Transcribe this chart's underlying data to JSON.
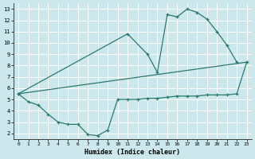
{
  "xlabel": "Humidex (Indice chaleur)",
  "bg_color": "#cce8ec",
  "grid_color": "#ffffff",
  "line_color": "#2a7a6a",
  "xlim": [
    -0.5,
    23.5
  ],
  "ylim": [
    1.5,
    13.5
  ],
  "xticks": [
    0,
    1,
    2,
    3,
    4,
    5,
    6,
    7,
    8,
    9,
    10,
    11,
    12,
    13,
    14,
    15,
    16,
    17,
    18,
    19,
    20,
    21,
    22,
    23
  ],
  "yticks": [
    2,
    3,
    4,
    5,
    6,
    7,
    8,
    9,
    10,
    11,
    12,
    13
  ],
  "line1_x": [
    0,
    1,
    2,
    3,
    4,
    5,
    6,
    7,
    8,
    9,
    10,
    11,
    12,
    13,
    14,
    15,
    16,
    17,
    18,
    19,
    20,
    21,
    22,
    23
  ],
  "line1_y": [
    5.5,
    4.8,
    4.5,
    3.7,
    3.0,
    2.8,
    2.8,
    1.9,
    1.8,
    2.3,
    5.0,
    5.0,
    5.0,
    5.1,
    5.1,
    5.2,
    5.3,
    5.3,
    5.3,
    5.4,
    5.4,
    5.4,
    5.5,
    8.3
  ],
  "line2_x": [
    0,
    11,
    13,
    14,
    15,
    16,
    17,
    18,
    19,
    20,
    21,
    22
  ],
  "line2_y": [
    5.5,
    10.8,
    9.0,
    7.4,
    12.5,
    12.3,
    13.0,
    12.7,
    12.1,
    11.0,
    9.8,
    8.3
  ],
  "line3_x": [
    0,
    23
  ],
  "line3_y": [
    5.5,
    8.3
  ]
}
